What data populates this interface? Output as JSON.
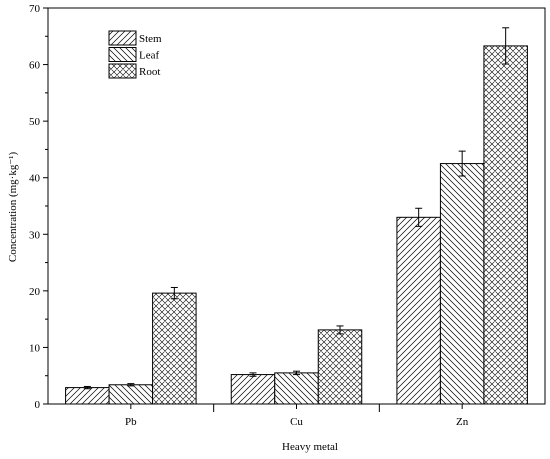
{
  "chart_data": {
    "type": "bar",
    "title": "",
    "xlabel": "Heavy metal",
    "ylabel": "Concentration (mg·kg⁻¹)",
    "categories": [
      "Pb",
      "Cu",
      "Zn"
    ],
    "series": [
      {
        "name": "Stem",
        "values": [
          2.9,
          5.2,
          33.0
        ],
        "errors": [
          0.2,
          0.3,
          1.6
        ],
        "pattern": "diag-right"
      },
      {
        "name": "Leaf",
        "values": [
          3.4,
          5.5,
          42.5
        ],
        "errors": [
          0.2,
          0.3,
          2.2
        ],
        "pattern": "diag-left"
      },
      {
        "name": "Root",
        "values": [
          19.6,
          13.1,
          63.3
        ],
        "errors": [
          1.0,
          0.7,
          3.2
        ],
        "pattern": "crosshatch"
      }
    ],
    "ylim": [
      0,
      70
    ],
    "yticks": [
      0,
      10,
      20,
      30,
      40,
      50,
      60,
      70
    ],
    "grid": false,
    "legend_position": "top-left"
  }
}
